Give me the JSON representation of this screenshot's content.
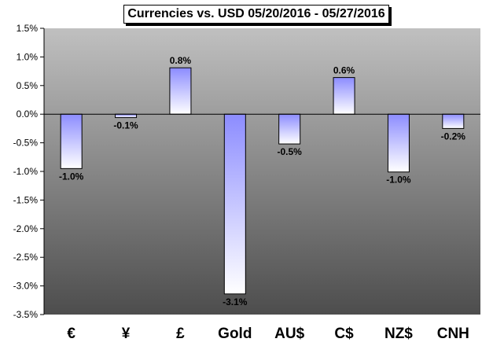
{
  "chart_data": {
    "type": "bar",
    "title": "Currencies vs. USD 05/20/2016 - 05/27/2016",
    "categories": [
      "€",
      "¥",
      "£",
      "Gold",
      "AU$",
      "C$",
      "NZ$",
      "CNH"
    ],
    "values": [
      -0.95,
      -0.06,
      0.81,
      -3.14,
      -0.52,
      0.64,
      -1.01,
      -0.25
    ],
    "data_labels": [
      "-1.0%",
      "-0.1%",
      "0.8%",
      "-3.1%",
      "-0.5%",
      "0.6%",
      "-1.0%",
      "-0.2%"
    ],
    "ylim": [
      -3.5,
      1.5
    ],
    "yticks": [
      1.5,
      1.0,
      0.5,
      0.0,
      -0.5,
      -1.0,
      -1.5,
      -2.0,
      -2.5,
      -3.0,
      -3.5
    ],
    "ytick_labels": [
      "1.5%",
      "1.0%",
      "0.5%",
      "0.0%",
      "-0.5%",
      "-1.0%",
      "-1.5%",
      "-2.0%",
      "-2.5%",
      "-3.0%",
      "-3.5%"
    ],
    "xlabel": "",
    "ylabel": "",
    "grid": false,
    "legend": "none",
    "colors": {
      "plot_bg_top": "#c0c0c0",
      "plot_bg_bottom": "#4d4d4d",
      "bar_fill_light": "#ffffff",
      "bar_fill_dark": "#8c8cff"
    }
  }
}
